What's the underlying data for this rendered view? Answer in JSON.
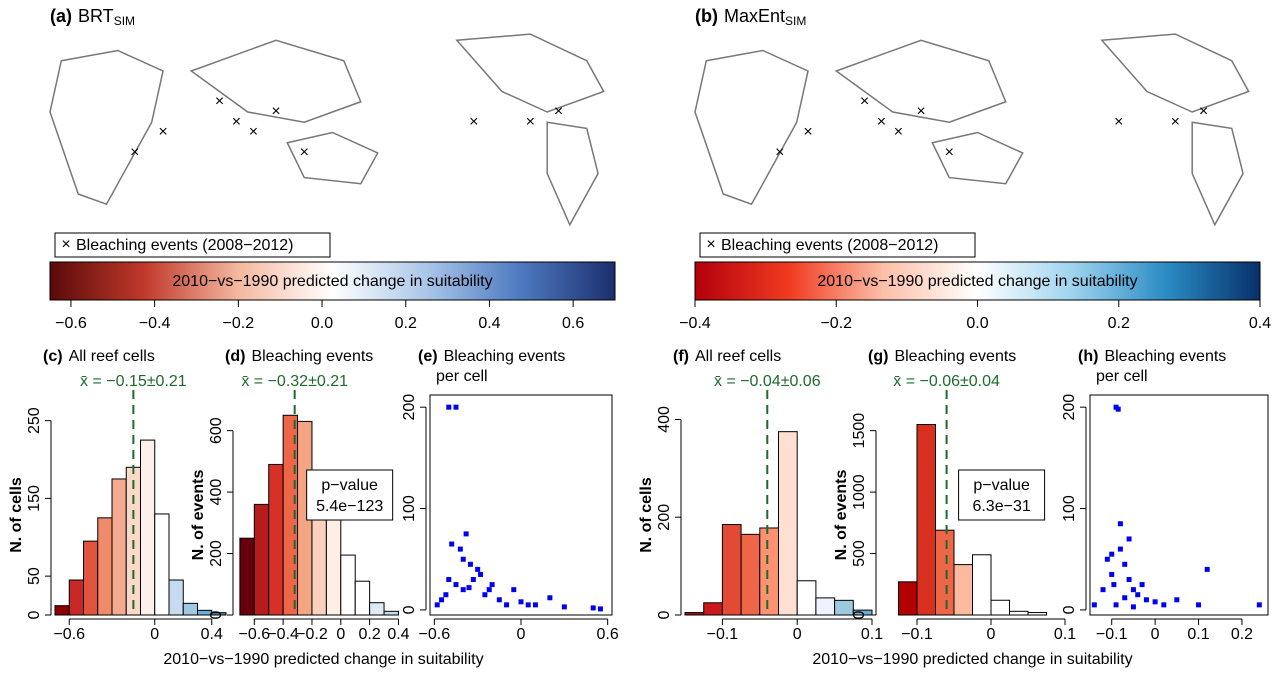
{
  "chart_data": [
    {
      "type": "map",
      "label": "(a)",
      "title": "BRT",
      "title_sub": "SIM",
      "legend": "Bleaching events (2008−2012)",
      "colorbar": {
        "label": "2010−vs−1990 predicted change in suitability",
        "lim": [
          -0.65,
          0.7
        ],
        "colors": [
          "#5a0a0a",
          "#c0392b",
          "#f4b8a0",
          "#ffffff",
          "#a9c6e8",
          "#4e79c0",
          "#1c2f6e"
        ],
        "ticks": [
          {
            "value": -0.6,
            "label": "−0.6"
          },
          {
            "value": -0.4,
            "label": "−0.4"
          },
          {
            "value": -0.2,
            "label": "−0.2"
          },
          {
            "value": 0,
            "label": "0.0"
          },
          0.2,
          0.4,
          0.6
        ]
      }
    },
    {
      "type": "map",
      "label": "(b)",
      "title": "MaxEnt",
      "title_sub": "SIM",
      "legend": "Bleaching events (2008−2012)",
      "colorbar": {
        "label": "2010−vs−1990 predicted change in suitability",
        "lim": [
          -0.4,
          0.4
        ],
        "colors": [
          "#b3000c",
          "#f03b20",
          "#fcbfa8",
          "#ffffff",
          "#9fd3ee",
          "#2b8cc4",
          "#08306b"
        ],
        "ticks": [
          {
            "value": -0.4,
            "label": "−0.4"
          },
          {
            "value": -0.2,
            "label": "−0.2"
          },
          {
            "value": 0,
            "label": "0.0"
          },
          0.2,
          0.4
        ]
      }
    },
    {
      "type": "histogram",
      "label": "(c)",
      "title": "All reef cells",
      "ylabel": "N. of cells",
      "bins": [
        -0.7,
        -0.6,
        -0.5,
        -0.4,
        -0.3,
        -0.2,
        -0.1,
        0,
        0.1,
        0.2,
        0.3,
        0.4,
        0.5
      ],
      "counts": [
        12,
        45,
        95,
        125,
        175,
        190,
        225,
        130,
        45,
        15,
        6,
        3
      ],
      "colors": [
        "#8b0000",
        "#c62828",
        "#e0533d",
        "#ef8a6a",
        "#f5ab8f",
        "#fcd8c8",
        "#fdf0ea",
        "#ffffff",
        "#c6dbef",
        "#9ecae1",
        "#6baed6",
        "#4292c6"
      ],
      "mean": -0.15,
      "mean_label": "x̄ = −0.15±0.21",
      "xlim": [
        -0.7,
        0.5
      ],
      "ylim": [
        0,
        283
      ],
      "xticks": [
        {
          "value": -0.6,
          "label": "−0.6"
        },
        0,
        0.4
      ],
      "yticks": [
        0,
        50,
        150,
        250
      ]
    },
    {
      "type": "histogram",
      "label": "(d)",
      "title": "Bleaching events",
      "ylabel": "N. of events",
      "xlabel": "2010−vs−1990 predicted change in suitability",
      "bins": [
        -0.7,
        -0.6,
        -0.5,
        -0.4,
        -0.3,
        -0.2,
        -0.1,
        0,
        0.1,
        0.2,
        0.3,
        0.4
      ],
      "counts": [
        250,
        360,
        490,
        650,
        630,
        430,
        350,
        195,
        110,
        40,
        12
      ],
      "colors": [
        "#67000d",
        "#b71c1c",
        "#d73027",
        "#ef6548",
        "#f4a582",
        "#fbd0bf",
        "#fdeee6",
        "#ffffff",
        "#ffffff",
        "#deebf7",
        "#c6dbef"
      ],
      "mean": -0.32,
      "mean_label": "x̄ = −0.32±0.21",
      "pvalue_label": "p−value",
      "pvalue": "5.4e−123",
      "xlim": [
        -0.72,
        0.48
      ],
      "ylim": [
        0,
        716
      ],
      "xticks": [
        {
          "value": -0.6,
          "label": "−0.6"
        },
        {
          "value": -0.4,
          "label": "−0.4"
        },
        {
          "value": -0.2,
          "label": "−0.2"
        },
        0,
        0.2,
        0.4
      ],
      "yticks": [
        0,
        200,
        400,
        600
      ]
    },
    {
      "type": "scatter",
      "label": "(e)",
      "title": "Bleaching events",
      "title2": "per cell",
      "color": "#0000ee",
      "x": [
        -0.5,
        -0.45,
        -0.55,
        -0.48,
        -0.42,
        -0.38,
        -0.35,
        -0.3,
        -0.5,
        -0.45,
        -0.4,
        -0.33,
        -0.25,
        -0.2,
        -0.15,
        -0.1,
        -0.05,
        0,
        0.05,
        0.1,
        0.2,
        0.3,
        0.5,
        0.55,
        -0.58,
        -0.52,
        -0.28,
        -0.22,
        -0.4,
        -0.36
      ],
      "y": [
        200,
        200,
        10,
        65,
        60,
        75,
        45,
        40,
        30,
        25,
        20,
        30,
        15,
        25,
        10,
        5,
        20,
        8,
        5,
        5,
        12,
        3,
        2,
        1,
        5,
        15,
        35,
        20,
        50,
        22
      ],
      "xlim": [
        -0.63,
        0.63
      ],
      "ylim": [
        -5,
        212
      ],
      "xticks": [
        {
          "value": -0.6,
          "label": "−0.6"
        },
        0,
        0.6
      ],
      "yticks": [
        0,
        100,
        200
      ]
    },
    {
      "type": "histogram",
      "label": "(f)",
      "title": "All reef cells",
      "ylabel": "N. of cells",
      "bins": [
        -0.15,
        -0.125,
        -0.1,
        -0.075,
        -0.05,
        -0.025,
        0,
        0.025,
        0.05,
        0.075,
        0.1
      ],
      "counts": [
        5,
        25,
        185,
        165,
        178,
        375,
        70,
        35,
        30,
        10
      ],
      "colors": [
        "#a50f15",
        "#cb181d",
        "#e34a33",
        "#ef6548",
        "#fc9272",
        "#fee0d2",
        "#ffffff",
        "#eff3ff",
        "#9ecae1",
        "#6baed6"
      ],
      "mean": -0.04,
      "mean_label": "x̄ = −0.04±0.06",
      "xlim": [
        -0.15,
        0.1
      ],
      "ylim": [
        0,
        450
      ],
      "xticks": [
        {
          "value": -0.1,
          "label": "−0.1"
        },
        0,
        0.1
      ],
      "yticks": [
        0,
        200,
        400
      ]
    },
    {
      "type": "histogram",
      "label": "(g)",
      "title": "Bleaching events",
      "ylabel": "N. of events",
      "xlabel": "2010−vs−1990 predicted change in suitability",
      "bins": [
        -0.125,
        -0.1,
        -0.075,
        -0.05,
        -0.025,
        0,
        0.025,
        0.05,
        0.075
      ],
      "counts": [
        270,
        1550,
        690,
        410,
        490,
        120,
        30,
        20
      ],
      "colors": [
        "#b30000",
        "#d7301f",
        "#ef6548",
        "#fcbba1",
        "#ffffff",
        "#ffffff",
        "#ffffff",
        "#ffffff"
      ],
      "mean": -0.06,
      "mean_label": "x̄ = −0.06±0.04",
      "pvalue_label": "p−value",
      "pvalue": "6.3e−31",
      "xlim": [
        -0.15,
        0.1
      ],
      "ylim": [
        0,
        1790
      ],
      "xticks": [
        {
          "value": -0.1,
          "label": "−0.1"
        },
        0,
        0.1
      ],
      "yticks": [
        0,
        500,
        1000,
        1500
      ]
    },
    {
      "type": "scatter",
      "label": "(h)",
      "title": "Bleaching events",
      "title2": "per cell",
      "color": "#0000ee",
      "x": [
        -0.09,
        -0.085,
        -0.1,
        -0.08,
        -0.07,
        -0.11,
        -0.06,
        -0.05,
        -0.04,
        -0.03,
        -0.02,
        -0.1,
        -0.12,
        -0.09,
        -0.08,
        0,
        0.02,
        0.05,
        0.1,
        0.12,
        0.24,
        -0.14,
        -0.07,
        -0.05,
        -0.095,
        -0.06
      ],
      "y": [
        200,
        198,
        55,
        85,
        45,
        50,
        30,
        20,
        15,
        25,
        10,
        35,
        20,
        5,
        60,
        8,
        5,
        10,
        5,
        40,
        5,
        5,
        12,
        3,
        25,
        70
      ],
      "xlim": [
        -0.15,
        0.26
      ],
      "ylim": [
        -5,
        212
      ],
      "xticks": [
        {
          "value": -0.1,
          "label": "−0.1"
        },
        0,
        0.1,
        0.2
      ],
      "yticks": [
        0,
        100,
        200
      ]
    }
  ]
}
